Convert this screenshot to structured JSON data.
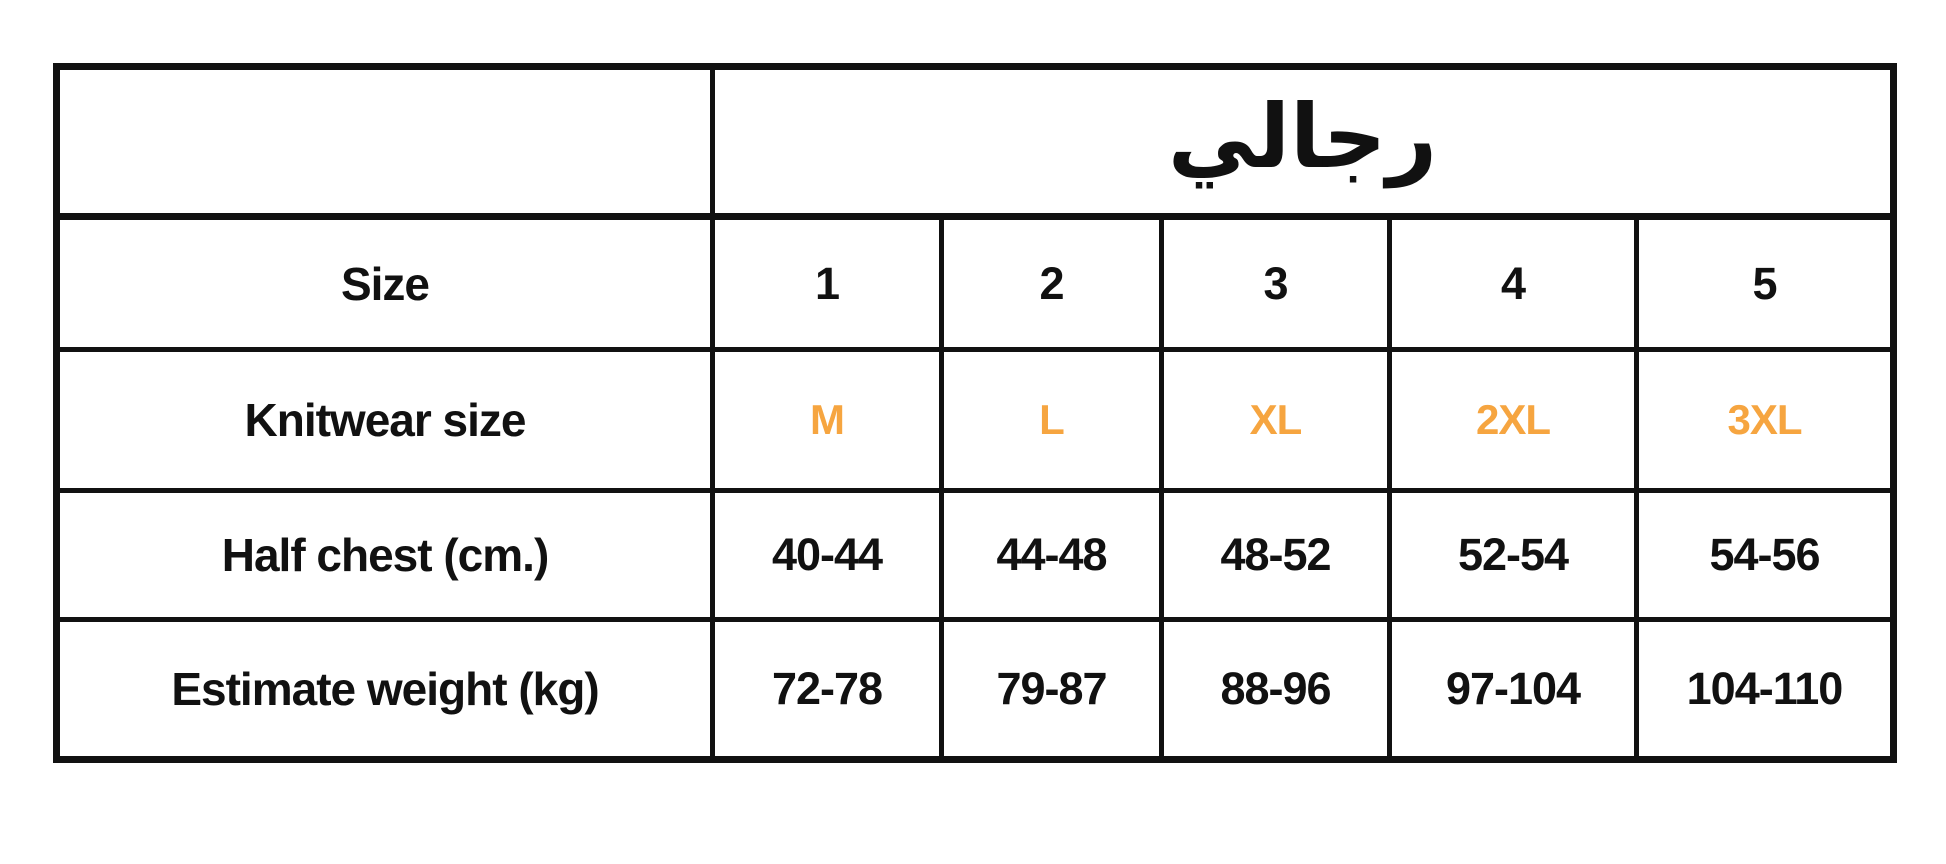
{
  "colors": {
    "background": "#FFFFFF",
    "border": "#111111",
    "text": "#111111",
    "accent_orange": "#F6A540"
  },
  "table": {
    "header_arabic": "رجالي",
    "rows": [
      {
        "label": "Size",
        "values": [
          "1",
          "2",
          "3",
          "4",
          "5"
        ]
      },
      {
        "label": "Knitwear size",
        "values": [
          "M",
          "L",
          "XL",
          "2XL",
          "3XL"
        ]
      },
      {
        "label": "Half chest (cm.)",
        "values": [
          "40-44",
          "44-48",
          "48-52",
          "52-54",
          "54-56"
        ]
      },
      {
        "label": "Estimate weight (kg)",
        "values": [
          "72-78",
          "79-87",
          "88-96",
          "97-104",
          "104-110"
        ]
      }
    ]
  }
}
